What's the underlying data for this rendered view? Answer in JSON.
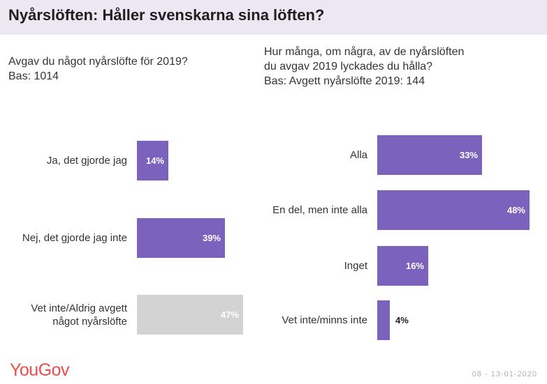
{
  "title": "Nyårslöften: Håller svenskarna sina löften?",
  "logo": "YouGov",
  "date": "08 - 13-01-2020",
  "colors": {
    "primary": "#7a62bd",
    "neutral": "#d3d3d3",
    "title_bg": "#ebe7f3",
    "logo": "#f04b4b"
  },
  "chart_data": [
    {
      "type": "bar",
      "orientation": "horizontal",
      "question_lines": [
        "Avgav du något nyårslöfte för 2019?",
        "Bas: 1014"
      ],
      "categories": [
        {
          "lines": [
            "Ja, det gjorde jag"
          ],
          "value": 14,
          "label": "14%",
          "color": "primary"
        },
        {
          "lines": [
            "Nej, det gjorde jag inte"
          ],
          "value": 39,
          "label": "39%",
          "color": "primary"
        },
        {
          "lines": [
            "Vet inte/Aldrig avgett",
            "något nyårslöfte"
          ],
          "value": 47,
          "label": "47%",
          "color": "neutral"
        }
      ],
      "unit": "%"
    },
    {
      "type": "bar",
      "orientation": "horizontal",
      "question_lines": [
        "Hur många, om några, av de nyårslöften",
        "du avgav 2019 lyckades du hålla?",
        "Bas: Avgett nyårslöfte 2019: 144"
      ],
      "categories": [
        {
          "lines": [
            "Alla"
          ],
          "value": 33,
          "label": "33%",
          "color": "primary"
        },
        {
          "lines": [
            "En del, men inte alla"
          ],
          "value": 48,
          "label": "48%",
          "color": "primary"
        },
        {
          "lines": [
            "Inget"
          ],
          "value": 16,
          "label": "16%",
          "color": "primary"
        },
        {
          "lines": [
            "Vet inte/minns inte"
          ],
          "value": 4,
          "label": "4%",
          "color": "primary"
        }
      ],
      "unit": "%"
    }
  ]
}
